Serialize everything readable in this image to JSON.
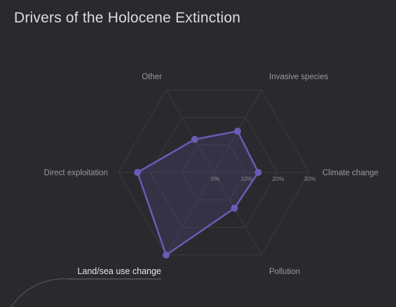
{
  "title": "Drivers of the Holocene Extinction",
  "colors": {
    "background": "#2a2a2e",
    "series": "#6b5bb5",
    "grid": "#3a3a40"
  },
  "chart_data": {
    "type": "radar",
    "title": "Drivers of the Holocene Extinction",
    "categories": [
      "Climate change",
      "Invasive species",
      "Other",
      "Direct exploitation",
      "Land/sea use change",
      "Pollution"
    ],
    "values": [
      14,
      15,
      12,
      24,
      30,
      13
    ],
    "rmax": 30,
    "ticks": [
      "0%",
      "10%",
      "20%",
      "30%"
    ],
    "tick_values": [
      0,
      10,
      20,
      30
    ],
    "highlighted_category": "Land/sea use change",
    "grid": true,
    "legend": "none"
  }
}
